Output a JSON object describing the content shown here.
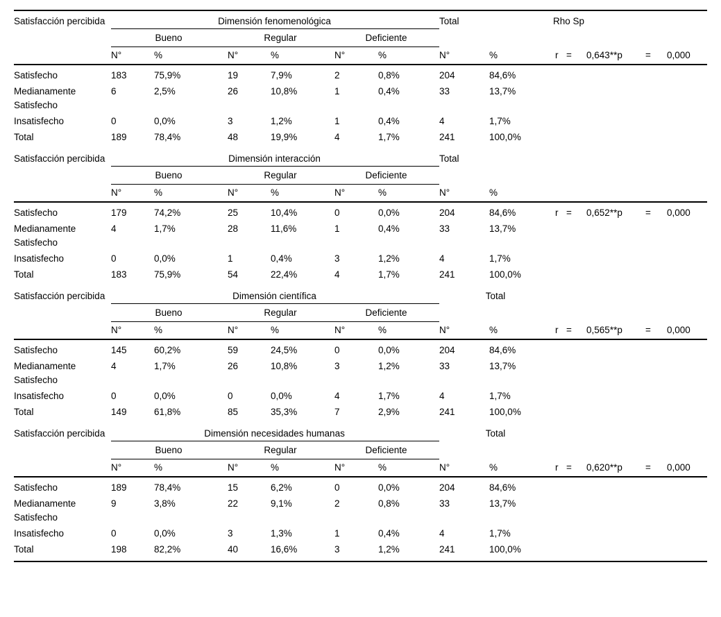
{
  "table": {
    "row_header": "Satisfacción percibida",
    "col_n": "N°",
    "col_pct": "%",
    "group_headers": [
      "Bueno",
      "Regular",
      "Deficiente"
    ],
    "total_label": "Total",
    "rho_header": "Rho Sp",
    "text_color": "#000000",
    "background_color": "#ffffff",
    "sections": [
      {
        "dimension": "Dimensión fenomenológica",
        "rho_position": "header-row",
        "rho": {
          "r": "r",
          "eq1": "=",
          "value": "0,643**p",
          "eq2": "=",
          "p": "0,000"
        },
        "rows": [
          {
            "label": "Satisfecho",
            "values": [
              "183",
              "75,9%",
              "19",
              "7,9%",
              "2",
              "0,8%",
              "204",
              "84,6%"
            ]
          },
          {
            "label": "Medianamente Satisfecho",
            "values": [
              "6",
              "2,5%",
              "26",
              "10,8%",
              "1",
              "0,4%",
              "33",
              "13,7%"
            ]
          },
          {
            "label": "Insatisfecho",
            "values": [
              "0",
              "0,0%",
              "3",
              "1,2%",
              "1",
              "0,4%",
              "4",
              "1,7%"
            ]
          },
          {
            "label": "Total",
            "values": [
              "189",
              "78,4%",
              "48",
              "19,9%",
              "4",
              "1,7%",
              "241",
              "100,0%"
            ]
          }
        ]
      },
      {
        "dimension": "Dimensión interacción",
        "rho_position": "first-data-row",
        "rho": {
          "r": "r",
          "eq1": "=",
          "value": "0,652**p",
          "eq2": "=",
          "p": "0,000"
        },
        "rows": [
          {
            "label": "Satisfecho",
            "values": [
              "179",
              "74,2%",
              "25",
              "10,4%",
              "0",
              "0,0%",
              "204",
              "84,6%"
            ]
          },
          {
            "label": "Medianamente Satisfecho",
            "values": [
              "4",
              "1,7%",
              "28",
              "11,6%",
              "1",
              "0,4%",
              "33",
              "13,7%"
            ]
          },
          {
            "label": "Insatisfecho",
            "values": [
              "0",
              "0,0%",
              "1",
              "0,4%",
              "3",
              "1,2%",
              "4",
              "1,7%"
            ]
          },
          {
            "label": "Total",
            "values": [
              "183",
              "75,9%",
              "54",
              "22,4%",
              "4",
              "1,7%",
              "241",
              "100,0%"
            ]
          }
        ]
      },
      {
        "dimension": "Dimensión científica",
        "rho_position": "header-row",
        "rho": {
          "r": "r",
          "eq1": "=",
          "value": "0,565**p",
          "eq2": "=",
          "p": "0,000"
        },
        "rows": [
          {
            "label": "Satisfecho",
            "values": [
              "145",
              "60,2%",
              "59",
              "24,5%",
              "0",
              "0,0%",
              "204",
              "84,6%"
            ]
          },
          {
            "label": "Medianamente Satisfecho",
            "values": [
              "4",
              "1,7%",
              "26",
              "10,8%",
              "3",
              "1,2%",
              "33",
              "13,7%"
            ]
          },
          {
            "label": "Insatisfecho",
            "values": [
              "0",
              "0,0%",
              "0",
              "0,0%",
              "4",
              "1,7%",
              "4",
              "1,7%"
            ]
          },
          {
            "label": "Total",
            "values": [
              "149",
              "61,8%",
              "85",
              "35,3%",
              "7",
              "2,9%",
              "241",
              "100,0%"
            ]
          }
        ]
      },
      {
        "dimension": "Dimensión necesidades humanas",
        "rho_position": "header-row",
        "rho": {
          "r": "r",
          "eq1": "=",
          "value": "0,620**p",
          "eq2": "=",
          "p": "0,000"
        },
        "rows": [
          {
            "label": "Satisfecho",
            "values": [
              "189",
              "78,4%",
              "15",
              "6,2%",
              "0",
              "0,0%",
              "204",
              "84,6%"
            ]
          },
          {
            "label": "Medianamente Satisfecho",
            "values": [
              "9",
              "3,8%",
              "22",
              "9,1%",
              "2",
              "0,8%",
              "33",
              "13,7%"
            ]
          },
          {
            "label": "Insatisfecho",
            "values": [
              "0",
              "0,0%",
              "3",
              "1,3%",
              "1",
              "0,4%",
              "4",
              "1,7%"
            ]
          },
          {
            "label": "Total",
            "values": [
              "198",
              "82,2%",
              "40",
              "16,6%",
              "3",
              "1,2%",
              "241",
              "100,0%"
            ]
          }
        ]
      }
    ]
  }
}
